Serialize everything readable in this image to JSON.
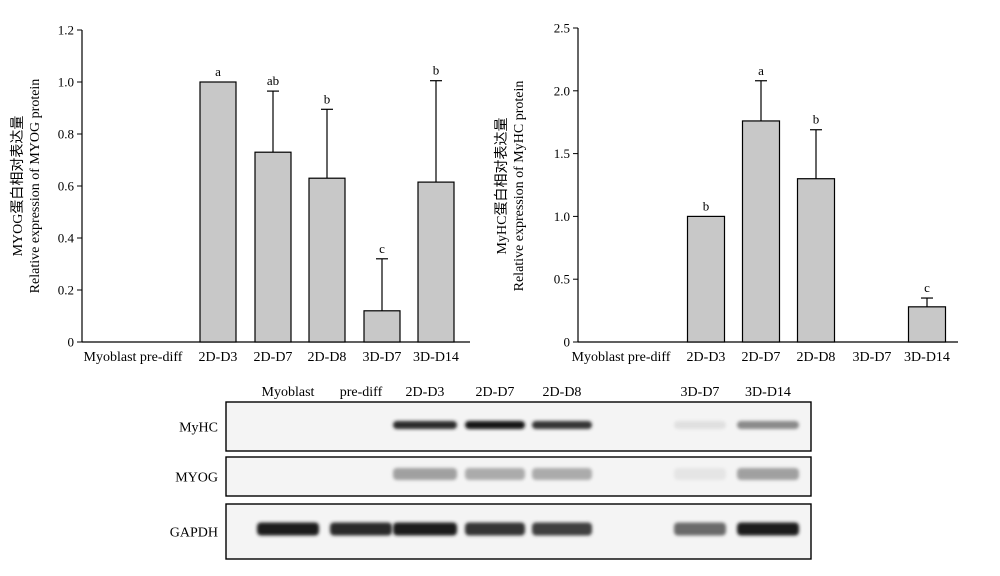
{
  "chart_data": [
    {
      "type": "bar",
      "categories": [
        "Myoblast pre-diff",
        "2D-D3",
        "2D-D7",
        "2D-D8",
        "3D-D7",
        "3D-D14"
      ],
      "values": [
        null,
        1.0,
        0.73,
        0.63,
        0.12,
        0.615
      ],
      "errors": [
        null,
        0,
        0.235,
        0.265,
        0.2,
        0.39
      ],
      "significance": [
        "",
        "a",
        "ab",
        "b",
        "c",
        "b"
      ],
      "ylabel_lines": [
        "MYOG蛋白相对表达量",
        "Relative expression of MYOG protein"
      ],
      "ylim": [
        0,
        1.2
      ],
      "yticks": [
        0,
        0.2,
        0.4,
        0.6,
        0.8,
        1.0,
        1.2
      ],
      "ytick_labels": [
        "0",
        "0.2",
        "0.4",
        "0.6",
        "0.8",
        "1.0",
        "1.2"
      ],
      "grid": false,
      "bar_color": "#c8c8c8"
    },
    {
      "type": "bar",
      "categories": [
        "Myoblast pre-diff",
        "2D-D3",
        "2D-D7",
        "2D-D8",
        "3D-D7",
        "3D-D14"
      ],
      "values": [
        null,
        1.0,
        1.76,
        1.3,
        null,
        0.28
      ],
      "errors": [
        null,
        0,
        0.32,
        0.39,
        null,
        0.07
      ],
      "significance": [
        "",
        "b",
        "a",
        "b",
        "",
        "c"
      ],
      "ylabel_lines": [
        "MyHC蛋白相对表达量",
        "Relative expression of MyHC protein"
      ],
      "ylim": [
        0,
        2.5
      ],
      "yticks": [
        0,
        0.5,
        1.0,
        1.5,
        2.0,
        2.5
      ],
      "ytick_labels": [
        "0",
        "0.5",
        "1.0",
        "1.5",
        "2.0",
        "2.5"
      ],
      "grid": false,
      "bar_color": "#c8c8c8"
    }
  ],
  "western_blot": {
    "lane_labels": [
      "Myoblast",
      "pre-diff",
      "2D-D3",
      "2D-D7",
      "2D-D8",
      "3D-D7",
      "3D-D14"
    ],
    "rows": [
      {
        "label": "MyHC",
        "intensity": [
          0,
          0,
          0.9,
          1.0,
          0.85,
          0.05,
          0.45
        ]
      },
      {
        "label": "MYOG",
        "intensity": [
          0,
          0,
          0.35,
          0.3,
          0.3,
          0.03,
          0.35
        ]
      },
      {
        "label": "GAPDH",
        "intensity": [
          0.95,
          0.9,
          0.95,
          0.85,
          0.8,
          0.6,
          0.95
        ]
      }
    ]
  }
}
